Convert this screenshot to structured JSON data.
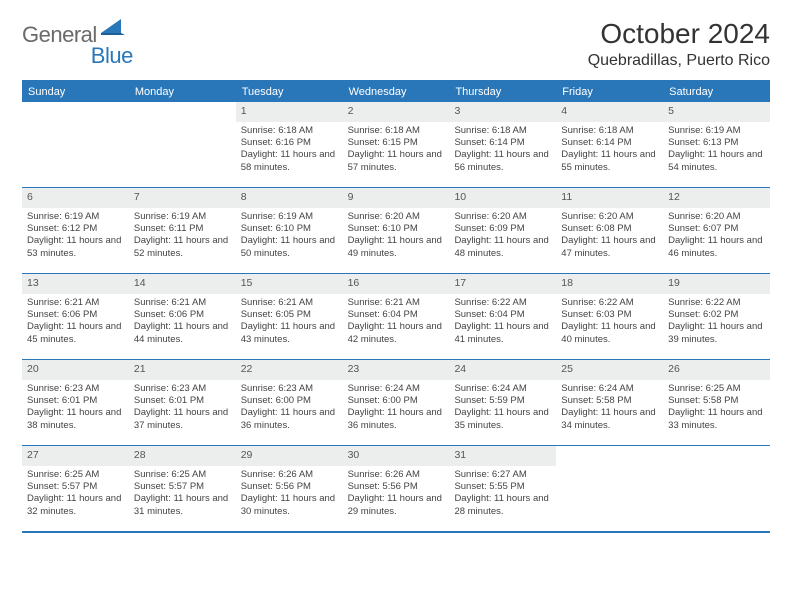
{
  "logo": {
    "word1": "General",
    "word2": "Blue"
  },
  "title": "October 2024",
  "location": "Quebradillas, Puerto Rico",
  "colors": {
    "accent": "#2977b8",
    "header_bg": "#2977b8",
    "header_fg": "#ffffff",
    "daybar_bg": "#eceded",
    "text": "#333333",
    "logo_gray": "#6a6a6a"
  },
  "weekdays": [
    "Sunday",
    "Monday",
    "Tuesday",
    "Wednesday",
    "Thursday",
    "Friday",
    "Saturday"
  ],
  "weeks": [
    [
      null,
      null,
      {
        "n": "1",
        "sr": "Sunrise: 6:18 AM",
        "ss": "Sunset: 6:16 PM",
        "dl": "Daylight: 11 hours and 58 minutes."
      },
      {
        "n": "2",
        "sr": "Sunrise: 6:18 AM",
        "ss": "Sunset: 6:15 PM",
        "dl": "Daylight: 11 hours and 57 minutes."
      },
      {
        "n": "3",
        "sr": "Sunrise: 6:18 AM",
        "ss": "Sunset: 6:14 PM",
        "dl": "Daylight: 11 hours and 56 minutes."
      },
      {
        "n": "4",
        "sr": "Sunrise: 6:18 AM",
        "ss": "Sunset: 6:14 PM",
        "dl": "Daylight: 11 hours and 55 minutes."
      },
      {
        "n": "5",
        "sr": "Sunrise: 6:19 AM",
        "ss": "Sunset: 6:13 PM",
        "dl": "Daylight: 11 hours and 54 minutes."
      }
    ],
    [
      {
        "n": "6",
        "sr": "Sunrise: 6:19 AM",
        "ss": "Sunset: 6:12 PM",
        "dl": "Daylight: 11 hours and 53 minutes."
      },
      {
        "n": "7",
        "sr": "Sunrise: 6:19 AM",
        "ss": "Sunset: 6:11 PM",
        "dl": "Daylight: 11 hours and 52 minutes."
      },
      {
        "n": "8",
        "sr": "Sunrise: 6:19 AM",
        "ss": "Sunset: 6:10 PM",
        "dl": "Daylight: 11 hours and 50 minutes."
      },
      {
        "n": "9",
        "sr": "Sunrise: 6:20 AM",
        "ss": "Sunset: 6:10 PM",
        "dl": "Daylight: 11 hours and 49 minutes."
      },
      {
        "n": "10",
        "sr": "Sunrise: 6:20 AM",
        "ss": "Sunset: 6:09 PM",
        "dl": "Daylight: 11 hours and 48 minutes."
      },
      {
        "n": "11",
        "sr": "Sunrise: 6:20 AM",
        "ss": "Sunset: 6:08 PM",
        "dl": "Daylight: 11 hours and 47 minutes."
      },
      {
        "n": "12",
        "sr": "Sunrise: 6:20 AM",
        "ss": "Sunset: 6:07 PM",
        "dl": "Daylight: 11 hours and 46 minutes."
      }
    ],
    [
      {
        "n": "13",
        "sr": "Sunrise: 6:21 AM",
        "ss": "Sunset: 6:06 PM",
        "dl": "Daylight: 11 hours and 45 minutes."
      },
      {
        "n": "14",
        "sr": "Sunrise: 6:21 AM",
        "ss": "Sunset: 6:06 PM",
        "dl": "Daylight: 11 hours and 44 minutes."
      },
      {
        "n": "15",
        "sr": "Sunrise: 6:21 AM",
        "ss": "Sunset: 6:05 PM",
        "dl": "Daylight: 11 hours and 43 minutes."
      },
      {
        "n": "16",
        "sr": "Sunrise: 6:21 AM",
        "ss": "Sunset: 6:04 PM",
        "dl": "Daylight: 11 hours and 42 minutes."
      },
      {
        "n": "17",
        "sr": "Sunrise: 6:22 AM",
        "ss": "Sunset: 6:04 PM",
        "dl": "Daylight: 11 hours and 41 minutes."
      },
      {
        "n": "18",
        "sr": "Sunrise: 6:22 AM",
        "ss": "Sunset: 6:03 PM",
        "dl": "Daylight: 11 hours and 40 minutes."
      },
      {
        "n": "19",
        "sr": "Sunrise: 6:22 AM",
        "ss": "Sunset: 6:02 PM",
        "dl": "Daylight: 11 hours and 39 minutes."
      }
    ],
    [
      {
        "n": "20",
        "sr": "Sunrise: 6:23 AM",
        "ss": "Sunset: 6:01 PM",
        "dl": "Daylight: 11 hours and 38 minutes."
      },
      {
        "n": "21",
        "sr": "Sunrise: 6:23 AM",
        "ss": "Sunset: 6:01 PM",
        "dl": "Daylight: 11 hours and 37 minutes."
      },
      {
        "n": "22",
        "sr": "Sunrise: 6:23 AM",
        "ss": "Sunset: 6:00 PM",
        "dl": "Daylight: 11 hours and 36 minutes."
      },
      {
        "n": "23",
        "sr": "Sunrise: 6:24 AM",
        "ss": "Sunset: 6:00 PM",
        "dl": "Daylight: 11 hours and 36 minutes."
      },
      {
        "n": "24",
        "sr": "Sunrise: 6:24 AM",
        "ss": "Sunset: 5:59 PM",
        "dl": "Daylight: 11 hours and 35 minutes."
      },
      {
        "n": "25",
        "sr": "Sunrise: 6:24 AM",
        "ss": "Sunset: 5:58 PM",
        "dl": "Daylight: 11 hours and 34 minutes."
      },
      {
        "n": "26",
        "sr": "Sunrise: 6:25 AM",
        "ss": "Sunset: 5:58 PM",
        "dl": "Daylight: 11 hours and 33 minutes."
      }
    ],
    [
      {
        "n": "27",
        "sr": "Sunrise: 6:25 AM",
        "ss": "Sunset: 5:57 PM",
        "dl": "Daylight: 11 hours and 32 minutes."
      },
      {
        "n": "28",
        "sr": "Sunrise: 6:25 AM",
        "ss": "Sunset: 5:57 PM",
        "dl": "Daylight: 11 hours and 31 minutes."
      },
      {
        "n": "29",
        "sr": "Sunrise: 6:26 AM",
        "ss": "Sunset: 5:56 PM",
        "dl": "Daylight: 11 hours and 30 minutes."
      },
      {
        "n": "30",
        "sr": "Sunrise: 6:26 AM",
        "ss": "Sunset: 5:56 PM",
        "dl": "Daylight: 11 hours and 29 minutes."
      },
      {
        "n": "31",
        "sr": "Sunrise: 6:27 AM",
        "ss": "Sunset: 5:55 PM",
        "dl": "Daylight: 11 hours and 28 minutes."
      },
      null,
      null
    ]
  ]
}
